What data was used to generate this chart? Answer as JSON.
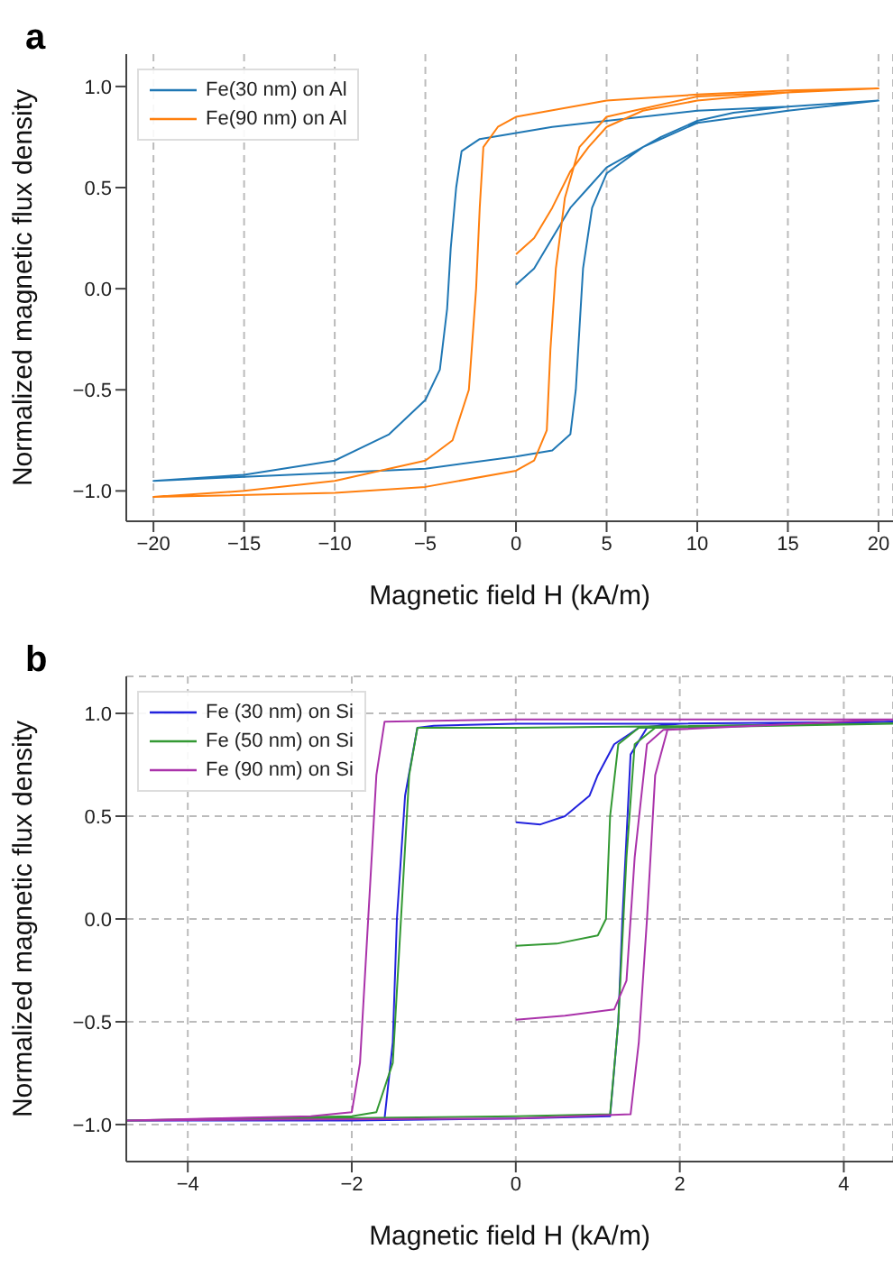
{
  "chart_data": [
    {
      "type": "line",
      "title": "a",
      "xlabel": "Magnetic field H (kA/m)",
      "ylabel": "Normalized magnetic flux density",
      "xlim": [
        -21.5,
        20.8
      ],
      "ylim": [
        -1.15,
        1.16
      ],
      "xticks": [
        {
          "value": -20,
          "label": "−20"
        },
        {
          "value": -15,
          "label": "−15"
        },
        {
          "value": -10,
          "label": "−10"
        },
        {
          "value": -5,
          "label": "−5"
        },
        0,
        5,
        10,
        15,
        20
      ],
      "yticks": [
        {
          "value": -1,
          "label": "−1.0"
        },
        {
          "value": -0.5,
          "label": "−0.5"
        },
        {
          "value": 0,
          "label": "0.0"
        },
        {
          "value": 0.5,
          "label": "0.5"
        },
        {
          "value": 1,
          "label": "1.0"
        }
      ],
      "grid": "x",
      "legend": "top left",
      "line_style": "solid",
      "marker": "none",
      "series": [
        {
          "name": "Fe(30 nm) on Al",
          "color": "#1f77b4",
          "x": [
            0,
            1,
            2,
            3,
            4,
            5,
            6,
            8,
            10,
            12,
            15,
            20,
            15,
            10,
            5,
            2,
            0,
            -2,
            -3,
            -3.3,
            -3.6,
            -3.8,
            -4.2,
            -5,
            -7,
            -10,
            -15,
            -20,
            -15,
            -10,
            -5,
            0,
            2,
            3,
            3.3,
            3.5,
            3.7,
            4.2,
            5,
            7,
            10,
            15,
            20
          ],
          "values": [
            0.02,
            0.1,
            0.25,
            0.4,
            0.5,
            0.6,
            0.65,
            0.75,
            0.83,
            0.87,
            0.9,
            0.93,
            0.9,
            0.88,
            0.83,
            0.8,
            0.77,
            0.74,
            0.68,
            0.5,
            0.2,
            -0.1,
            -0.4,
            -0.55,
            -0.72,
            -0.85,
            -0.92,
            -0.95,
            -0.93,
            -0.91,
            -0.89,
            -0.83,
            -0.8,
            -0.72,
            -0.5,
            -0.2,
            0.1,
            0.4,
            0.57,
            0.7,
            0.82,
            0.88,
            0.93
          ]
        },
        {
          "name": "Fe(90 nm) on Al",
          "color": "#ff7f0e",
          "x": [
            0,
            1,
            2,
            3,
            4,
            5,
            7,
            10,
            15,
            20,
            15,
            10,
            5,
            0,
            -1,
            -1.8,
            -2,
            -2.2,
            -2.6,
            -3.5,
            -5,
            -10,
            -15,
            -20,
            -10,
            -5,
            0,
            1,
            1.7,
            1.9,
            2.2,
            2.7,
            3.5,
            5,
            10,
            20
          ],
          "values": [
            0.17,
            0.25,
            0.4,
            0.58,
            0.7,
            0.8,
            0.88,
            0.93,
            0.97,
            0.99,
            0.98,
            0.96,
            0.93,
            0.85,
            0.8,
            0.7,
            0.4,
            0,
            -0.5,
            -0.75,
            -0.85,
            -0.95,
            -1.0,
            -1.03,
            -1.01,
            -0.98,
            -0.9,
            -0.85,
            -0.7,
            -0.3,
            0.1,
            0.45,
            0.7,
            0.85,
            0.95,
            0.99
          ]
        }
      ]
    },
    {
      "type": "line",
      "title": "b",
      "xlabel": "Magnetic field H (kA/m)",
      "ylabel": "Normalized magnetic flux density",
      "xlim": [
        -4.75,
        4.6
      ],
      "ylim": [
        -1.18,
        1.18
      ],
      "xticks": [
        {
          "value": -4,
          "label": "−4"
        },
        {
          "value": -2,
          "label": "−2"
        },
        0,
        2,
        4
      ],
      "yticks": [
        {
          "value": -1,
          "label": "−1.0"
        },
        {
          "value": -0.5,
          "label": "−0.5"
        },
        {
          "value": 0,
          "label": "0.0"
        },
        {
          "value": 0.5,
          "label": "0.5"
        },
        {
          "value": 1,
          "label": "1.0"
        }
      ],
      "grid": true,
      "legend": "top left",
      "line_style": "solid",
      "marker": "none",
      "series": [
        {
          "name": "Fe (30 nm) on Si",
          "color": "#2222dd",
          "x": [
            0,
            0.3,
            0.6,
            0.9,
            1.0,
            1.2,
            1.5,
            2,
            4.6,
            2,
            0,
            -1,
            -1.2,
            -1.35,
            -1.45,
            -1.5,
            -1.6,
            -2,
            -4.75,
            -2,
            0,
            1.15,
            1.25,
            1.3,
            1.4,
            1.6,
            4.6
          ],
          "values": [
            0.47,
            0.46,
            0.5,
            0.6,
            0.7,
            0.85,
            0.93,
            0.95,
            0.96,
            0.95,
            0.95,
            0.94,
            0.93,
            0.6,
            0,
            -0.6,
            -0.97,
            -0.98,
            -0.98,
            -0.98,
            -0.97,
            -0.96,
            -0.5,
            0,
            0.8,
            0.93,
            0.96
          ]
        },
        {
          "name": "Fe (50 nm) on Si",
          "color": "#339933",
          "x": [
            0,
            0.5,
            1.0,
            1.1,
            1.15,
            1.25,
            1.5,
            4.6,
            0,
            -1.2,
            -1.3,
            -1.4,
            -1.5,
            -1.7,
            -2,
            -4.75,
            0,
            1.15,
            1.25,
            1.35,
            1.45,
            1.7,
            4.6
          ],
          "values": [
            -0.13,
            -0.12,
            -0.08,
            0,
            0.5,
            0.85,
            0.93,
            0.95,
            0.93,
            0.93,
            0.7,
            0,
            -0.7,
            -0.94,
            -0.96,
            -0.98,
            -0.96,
            -0.95,
            -0.5,
            0.3,
            0.85,
            0.93,
            0.95
          ]
        },
        {
          "name": "Fe (90 nm) on Si",
          "color": "#aa33aa",
          "x": [
            0,
            0.6,
            1.2,
            1.35,
            1.45,
            1.6,
            1.8,
            4.6,
            0,
            -1.6,
            -1.7,
            -1.8,
            -1.9,
            -2.0,
            -2.5,
            -4.75,
            0,
            1.4,
            1.5,
            1.6,
            1.7,
            1.85,
            4.6
          ],
          "values": [
            -0.49,
            -0.47,
            -0.44,
            -0.3,
            0.3,
            0.85,
            0.92,
            0.97,
            0.97,
            0.96,
            0.7,
            0,
            -0.7,
            -0.94,
            -0.96,
            -0.98,
            -0.97,
            -0.95,
            -0.6,
            0,
            0.7,
            0.92,
            0.97
          ]
        }
      ]
    }
  ]
}
